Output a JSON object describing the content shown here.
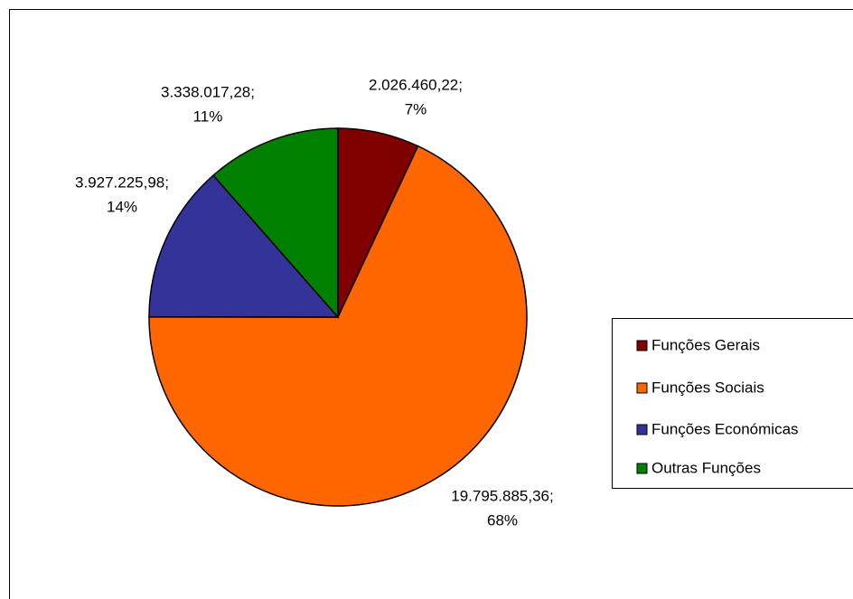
{
  "chart_data": {
    "type": "pie",
    "categories": [
      "Funções Gerais",
      "Funções Sociais",
      "Funções Económicas",
      "Outras Funções"
    ],
    "values": [
      2026460.22,
      19795885.36,
      3927225.98,
      3338017.28
    ],
    "value_labels": [
      "2.026.460,22;",
      "19.795.885,36;",
      "3.927.225,98;",
      "3.338.017,28;"
    ],
    "percents": [
      7,
      68,
      14,
      11
    ],
    "percent_labels": [
      "7%",
      "68%",
      "14%",
      "11%"
    ],
    "colors": [
      "#800000",
      "#ff6600",
      "#333399",
      "#008000"
    ],
    "legend": "right"
  }
}
